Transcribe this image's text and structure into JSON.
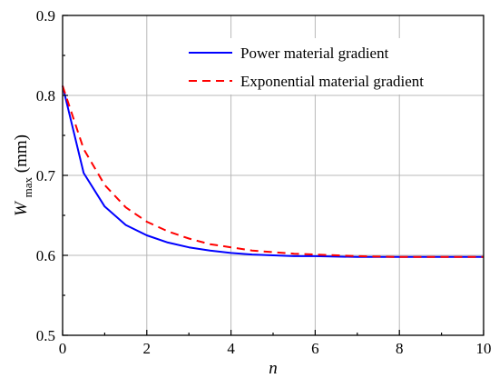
{
  "chart_data": {
    "type": "line",
    "title": "",
    "xlabel": "n",
    "ylabel_main": "W",
    "ylabel_sub": "max",
    "ylabel_unit": "(mm)",
    "xlim": [
      0,
      10
    ],
    "ylim": [
      0.5,
      0.9
    ],
    "xticks": [
      0,
      2,
      4,
      6,
      8,
      10
    ],
    "xtick_labels": [
      "0",
      "2",
      "4",
      "6",
      "8",
      "10"
    ],
    "yticks": [
      0.5,
      0.6,
      0.7,
      0.8,
      0.9
    ],
    "ytick_labels": [
      "0.5",
      "0.6",
      "0.7",
      "0.8",
      "0.9"
    ],
    "grid": true,
    "legend_position": "top-right",
    "series": [
      {
        "name": "Power material gradient",
        "color": "#0000ff",
        "dash": "solid",
        "x": [
          0,
          0.5,
          1,
          1.5,
          2,
          2.5,
          3,
          3.5,
          4,
          4.5,
          5,
          5.5,
          6,
          7,
          8,
          9,
          10
        ],
        "y": [
          0.812,
          0.703,
          0.661,
          0.638,
          0.625,
          0.616,
          0.61,
          0.606,
          0.603,
          0.601,
          0.6,
          0.599,
          0.599,
          0.598,
          0.598,
          0.598,
          0.598
        ]
      },
      {
        "name": "Exponential material gradient",
        "color": "#ff0000",
        "dash": "dashed",
        "x": [
          0,
          0.5,
          1,
          1.5,
          2,
          2.5,
          3,
          3.5,
          4,
          4.5,
          5,
          5.5,
          6,
          7,
          8,
          9,
          10
        ],
        "y": [
          0.812,
          0.733,
          0.688,
          0.66,
          0.642,
          0.63,
          0.621,
          0.614,
          0.61,
          0.606,
          0.604,
          0.602,
          0.601,
          0.599,
          0.598,
          0.598,
          0.598
        ]
      }
    ]
  }
}
